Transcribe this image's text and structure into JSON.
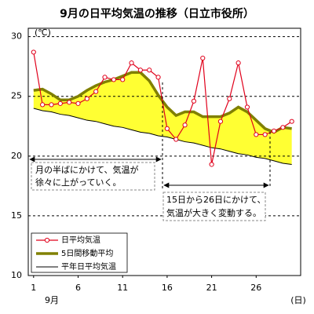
{
  "chart_data": {
    "type": "line",
    "title": "9月の日平均気温の推移（日立市役所）",
    "y_unit": "(℃)",
    "x_month_label": "9月",
    "x_unit": "(日)",
    "x": [
      1,
      2,
      3,
      4,
      5,
      6,
      7,
      8,
      9,
      10,
      11,
      12,
      13,
      14,
      15,
      16,
      17,
      18,
      19,
      20,
      21,
      22,
      23,
      24,
      25,
      26,
      27,
      28,
      29,
      30
    ],
    "xlim": [
      0.4,
      31
    ],
    "xticks": [
      1,
      6,
      11,
      16,
      21,
      26
    ],
    "ylim": [
      10,
      30.7
    ],
    "yticks": [
      10,
      15,
      20,
      25,
      30
    ],
    "grid": true,
    "fill_color": "#ffff33",
    "series": [
      {
        "name": "日平均気温",
        "color": "#e0001b",
        "marker": "circle",
        "values": [
          28.7,
          24.3,
          24.3,
          24.4,
          24.5,
          24.4,
          24.8,
          25.4,
          26.6,
          26.4,
          26.4,
          27.8,
          27.2,
          27.2,
          26.6,
          22.3,
          21.4,
          22.6,
          24.6,
          28.2,
          19.3,
          22.9,
          24.8,
          27.8,
          24.1,
          21.8,
          21.8,
          22.1,
          22.4,
          22.9
        ]
      },
      {
        "name": "5日間移動平均",
        "color": "#808000",
        "values": [
          25.5,
          25.6,
          25.2,
          24.7,
          24.7,
          25.0,
          25.5,
          25.9,
          26.2,
          26.4,
          26.7,
          27.0,
          27.0,
          26.3,
          25.1,
          24.1,
          23.4,
          23.7,
          23.7,
          23.3,
          23.3,
          23.3,
          23.6,
          24.1,
          23.7,
          23.0,
          22.3,
          22.0,
          22.4,
          22.3
        ]
      },
      {
        "name": "平年日平均気温",
        "color": "#000000",
        "values": [
          24.0,
          23.8,
          23.7,
          23.5,
          23.4,
          23.2,
          23.0,
          22.9,
          22.7,
          22.5,
          22.4,
          22.2,
          22.0,
          21.9,
          21.7,
          21.6,
          21.4,
          21.2,
          21.1,
          20.9,
          20.7,
          20.6,
          20.4,
          20.2,
          20.1,
          19.9,
          19.8,
          19.6,
          19.4,
          19.3
        ]
      }
    ],
    "annotations": [
      {
        "lines": [
          "月の半ばにかけて、気温が",
          "徐々に上がっていく。"
        ]
      },
      {
        "lines": [
          "15日から26日にかけて、",
          "気温が大きく変動する。"
        ]
      }
    ]
  }
}
